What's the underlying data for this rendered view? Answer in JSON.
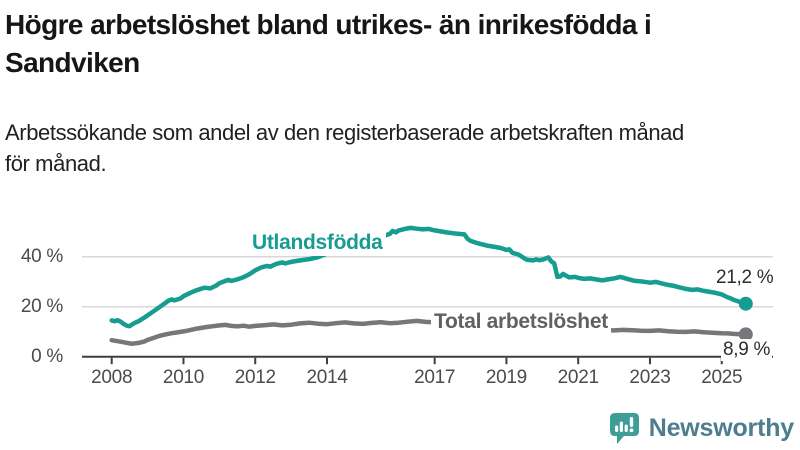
{
  "header": {
    "title_line1": "Högre arbetslöshet bland utrikes- än inrikesfödda i",
    "title_line2": "Sandviken",
    "subtitle_line1": "Arbetssökande som andel av den registerbaserade arbetskraften månad",
    "subtitle_line2": "för månad."
  },
  "chart_data": {
    "type": "line",
    "title": "Högre arbetslöshet bland utrikes- än inrikesfödda i Sandviken",
    "subtitle": "Arbetssökande som andel av den registerbaserade arbetskraften månad för månad.",
    "unit": "%",
    "grid": true,
    "legend_position": "inline-labels",
    "xlim": [
      2008,
      2025.75
    ],
    "ylim": [
      0,
      55
    ],
    "y_ticks": [
      {
        "value": 0,
        "label": "0 %"
      },
      {
        "value": 20,
        "label": "20 %"
      },
      {
        "value": 40,
        "label": "40 %"
      }
    ],
    "x_ticks": [
      {
        "year": 2008,
        "label": "2008"
      },
      {
        "year": 2010,
        "label": "2010"
      },
      {
        "year": 2012,
        "label": "2012"
      },
      {
        "year": 2014,
        "label": "2014"
      },
      {
        "year": 2017,
        "label": "2017"
      },
      {
        "year": 2019,
        "label": "2019"
      },
      {
        "year": 2021,
        "label": "2021"
      },
      {
        "year": 2023,
        "label": "2023"
      },
      {
        "year": 2025,
        "label": "2025"
      }
    ],
    "colors": {
      "grid": "#d8d8d8",
      "axis": "#3e3e3e",
      "tick_text": "#4b4b4b"
    },
    "series": [
      {
        "id": "utlandsfodda",
        "name": "Utlandsfödda",
        "color": "#179c90",
        "end_value": 21.2,
        "end_label": "21,2 %",
        "points": [
          [
            2008.0,
            14.5
          ],
          [
            2008.08,
            14.2
          ],
          [
            2008.17,
            14.6
          ],
          [
            2008.25,
            14.0
          ],
          [
            2008.33,
            13.1
          ],
          [
            2008.42,
            12.4
          ],
          [
            2008.5,
            12.2
          ],
          [
            2008.58,
            13.0
          ],
          [
            2008.67,
            13.7
          ],
          [
            2008.75,
            14.2
          ],
          [
            2008.83,
            14.9
          ],
          [
            2008.92,
            15.7
          ],
          [
            2009.0,
            16.5
          ],
          [
            2009.17,
            18.2
          ],
          [
            2009.33,
            19.8
          ],
          [
            2009.5,
            21.5
          ],
          [
            2009.58,
            22.4
          ],
          [
            2009.67,
            22.9
          ],
          [
            2009.75,
            22.5
          ],
          [
            2009.92,
            23.3
          ],
          [
            2010.0,
            24.2
          ],
          [
            2010.17,
            25.4
          ],
          [
            2010.33,
            26.4
          ],
          [
            2010.5,
            27.2
          ],
          [
            2010.58,
            27.6
          ],
          [
            2010.75,
            27.3
          ],
          [
            2010.92,
            28.5
          ],
          [
            2011.0,
            29.4
          ],
          [
            2011.17,
            30.3
          ],
          [
            2011.25,
            30.7
          ],
          [
            2011.33,
            30.3
          ],
          [
            2011.5,
            30.9
          ],
          [
            2011.67,
            31.8
          ],
          [
            2011.83,
            32.9
          ],
          [
            2012.0,
            34.5
          ],
          [
            2012.17,
            35.7
          ],
          [
            2012.33,
            36.3
          ],
          [
            2012.42,
            36.0
          ],
          [
            2012.58,
            37.1
          ],
          [
            2012.75,
            37.7
          ],
          [
            2012.83,
            37.3
          ],
          [
            2013.0,
            37.9
          ],
          [
            2013.25,
            38.5
          ],
          [
            2013.5,
            39.0
          ],
          [
            2013.75,
            39.8
          ],
          [
            2014.0,
            41.2
          ],
          [
            2014.25,
            43.1
          ],
          [
            2014.5,
            44.7
          ],
          [
            2014.75,
            45.9
          ],
          [
            2015.0,
            46.7
          ],
          [
            2015.25,
            47.5
          ],
          [
            2015.5,
            47.9
          ],
          [
            2015.75,
            49.1
          ],
          [
            2015.83,
            50.3
          ],
          [
            2015.92,
            49.7
          ],
          [
            2016.0,
            50.5
          ],
          [
            2016.17,
            51.1
          ],
          [
            2016.33,
            51.5
          ],
          [
            2016.5,
            51.2
          ],
          [
            2016.67,
            50.9
          ],
          [
            2016.83,
            51.1
          ],
          [
            2017.0,
            50.5
          ],
          [
            2017.17,
            50.1
          ],
          [
            2017.33,
            49.7
          ],
          [
            2017.5,
            49.4
          ],
          [
            2017.67,
            49.1
          ],
          [
            2017.83,
            48.9
          ],
          [
            2017.92,
            47.1
          ],
          [
            2018.0,
            46.3
          ],
          [
            2018.17,
            45.5
          ],
          [
            2018.33,
            44.9
          ],
          [
            2018.5,
            44.3
          ],
          [
            2018.67,
            43.9
          ],
          [
            2018.83,
            43.5
          ],
          [
            2019.0,
            42.7
          ],
          [
            2019.08,
            42.9
          ],
          [
            2019.17,
            41.5
          ],
          [
            2019.33,
            40.9
          ],
          [
            2019.5,
            39.3
          ],
          [
            2019.58,
            38.7
          ],
          [
            2019.75,
            38.5
          ],
          [
            2019.83,
            38.9
          ],
          [
            2019.92,
            38.6
          ],
          [
            2020.0,
            38.8
          ],
          [
            2020.08,
            39.2
          ],
          [
            2020.17,
            39.7
          ],
          [
            2020.25,
            38.1
          ],
          [
            2020.33,
            37.3
          ],
          [
            2020.42,
            31.9
          ],
          [
            2020.5,
            32.1
          ],
          [
            2020.58,
            33.1
          ],
          [
            2020.67,
            32.3
          ],
          [
            2020.75,
            31.7
          ],
          [
            2020.92,
            31.9
          ],
          [
            2021.0,
            31.5
          ],
          [
            2021.17,
            31.1
          ],
          [
            2021.33,
            31.3
          ],
          [
            2021.5,
            30.9
          ],
          [
            2021.67,
            30.5
          ],
          [
            2021.83,
            30.9
          ],
          [
            2022.0,
            31.3
          ],
          [
            2022.17,
            31.9
          ],
          [
            2022.25,
            31.6
          ],
          [
            2022.42,
            30.9
          ],
          [
            2022.58,
            30.3
          ],
          [
            2022.75,
            30.1
          ],
          [
            2022.92,
            29.8
          ],
          [
            2023.0,
            29.6
          ],
          [
            2023.17,
            29.9
          ],
          [
            2023.33,
            29.3
          ],
          [
            2023.5,
            28.7
          ],
          [
            2023.67,
            28.3
          ],
          [
            2023.83,
            27.7
          ],
          [
            2024.0,
            27.1
          ],
          [
            2024.17,
            26.7
          ],
          [
            2024.33,
            26.9
          ],
          [
            2024.5,
            26.3
          ],
          [
            2024.67,
            25.9
          ],
          [
            2024.83,
            25.5
          ],
          [
            2025.0,
            24.9
          ],
          [
            2025.08,
            24.3
          ],
          [
            2025.17,
            23.7
          ],
          [
            2025.25,
            23.3
          ],
          [
            2025.33,
            22.7
          ],
          [
            2025.42,
            22.3
          ],
          [
            2025.5,
            21.9
          ],
          [
            2025.58,
            21.5
          ],
          [
            2025.67,
            21.2
          ]
        ]
      },
      {
        "id": "total",
        "name": "Total arbetslöshet",
        "color": "#77777b",
        "end_value": 8.9,
        "end_label": "8,9 %",
        "points": [
          [
            2008.0,
            6.6
          ],
          [
            2008.17,
            6.2
          ],
          [
            2008.33,
            5.8
          ],
          [
            2008.42,
            5.5
          ],
          [
            2008.5,
            5.3
          ],
          [
            2008.58,
            5.2
          ],
          [
            2008.75,
            5.5
          ],
          [
            2008.92,
            6.1
          ],
          [
            2009.0,
            6.7
          ],
          [
            2009.17,
            7.5
          ],
          [
            2009.33,
            8.3
          ],
          [
            2009.5,
            8.9
          ],
          [
            2009.67,
            9.4
          ],
          [
            2009.83,
            9.7
          ],
          [
            2010.0,
            10.1
          ],
          [
            2010.17,
            10.6
          ],
          [
            2010.33,
            11.1
          ],
          [
            2010.5,
            11.5
          ],
          [
            2010.67,
            11.9
          ],
          [
            2010.83,
            12.2
          ],
          [
            2011.0,
            12.5
          ],
          [
            2011.17,
            12.7
          ],
          [
            2011.33,
            12.3
          ],
          [
            2011.5,
            12.1
          ],
          [
            2011.67,
            12.4
          ],
          [
            2011.83,
            12.0
          ],
          [
            2012.0,
            12.3
          ],
          [
            2012.25,
            12.6
          ],
          [
            2012.5,
            12.9
          ],
          [
            2012.75,
            12.5
          ],
          [
            2013.0,
            12.8
          ],
          [
            2013.25,
            13.3
          ],
          [
            2013.5,
            13.6
          ],
          [
            2013.75,
            13.2
          ],
          [
            2014.0,
            13.0
          ],
          [
            2014.25,
            13.4
          ],
          [
            2014.5,
            13.7
          ],
          [
            2014.75,
            13.3
          ],
          [
            2015.0,
            13.1
          ],
          [
            2015.25,
            13.5
          ],
          [
            2015.5,
            13.8
          ],
          [
            2015.75,
            13.4
          ],
          [
            2016.0,
            13.6
          ],
          [
            2016.25,
            14.0
          ],
          [
            2016.5,
            14.3
          ],
          [
            2016.75,
            13.9
          ],
          [
            2017.0,
            13.7
          ],
          [
            2017.25,
            14.1
          ],
          [
            2017.5,
            14.3
          ],
          [
            2017.75,
            13.8
          ],
          [
            2018.0,
            13.4
          ],
          [
            2018.25,
            13.0
          ],
          [
            2018.5,
            13.3
          ],
          [
            2018.75,
            12.8
          ],
          [
            2019.0,
            12.4
          ],
          [
            2019.25,
            12.6
          ],
          [
            2019.5,
            12.2
          ],
          [
            2019.75,
            12.5
          ],
          [
            2020.0,
            12.8
          ],
          [
            2020.25,
            13.2
          ],
          [
            2020.42,
            11.8
          ],
          [
            2020.58,
            11.6
          ],
          [
            2020.75,
            11.4
          ],
          [
            2021.0,
            11.2
          ],
          [
            2021.25,
            11.0
          ],
          [
            2021.5,
            10.8
          ],
          [
            2021.75,
            10.6
          ],
          [
            2022.0,
            10.5
          ],
          [
            2022.25,
            10.7
          ],
          [
            2022.5,
            10.6
          ],
          [
            2022.75,
            10.4
          ],
          [
            2023.0,
            10.3
          ],
          [
            2023.25,
            10.5
          ],
          [
            2023.5,
            10.2
          ],
          [
            2023.75,
            10.0
          ],
          [
            2024.0,
            9.9
          ],
          [
            2024.25,
            10.1
          ],
          [
            2024.5,
            9.8
          ],
          [
            2024.75,
            9.6
          ],
          [
            2025.0,
            9.4
          ],
          [
            2025.17,
            9.3
          ],
          [
            2025.33,
            9.1
          ],
          [
            2025.5,
            9.0
          ],
          [
            2025.67,
            8.9
          ]
        ]
      }
    ]
  },
  "footer": {
    "brand": "Newsworthy",
    "brand_icon": "bar-chart-speech-bubble-icon",
    "brand_icon_color": "#3f9d98",
    "brand_text_color": "#4d7d8f"
  }
}
